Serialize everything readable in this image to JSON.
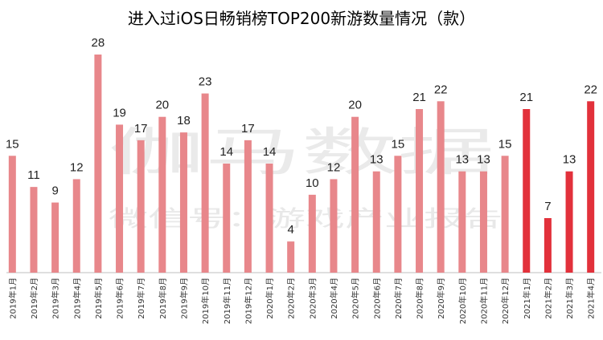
{
  "watermark": {
    "main": "伽马数据",
    "sub": "微信号：游戏产业报告"
  },
  "chart_data": {
    "type": "bar",
    "title": "进入过iOS日畅销榜TOP200新游数量情况（款）",
    "xlabel": "",
    "ylabel": "",
    "ylim": [
      0,
      30
    ],
    "grid": false,
    "categories": [
      "2019年1月",
      "2019年2月",
      "2019年3月",
      "2019年4月",
      "2019年5月",
      "2019年6月",
      "2019年7月",
      "2019年8月",
      "2019年9月",
      "2019年10月",
      "2019年11月",
      "2019年12月",
      "2020年1月",
      "2020年2月",
      "2020年3月",
      "2020年4月",
      "2020年5月",
      "2020年6月",
      "2020年7月",
      "2020年8月",
      "2020年9月",
      "2020年10月",
      "2020年11月",
      "2020年12月",
      "2021年1月",
      "2021年2月",
      "2021年3月",
      "2021年4月"
    ],
    "values": [
      15,
      11,
      9,
      12,
      28,
      19,
      17,
      20,
      18,
      23,
      14,
      17,
      14,
      4,
      10,
      12,
      20,
      13,
      15,
      21,
      22,
      13,
      13,
      15,
      21,
      7,
      13,
      22
    ],
    "colors": {
      "base": "#e8878b",
      "highlight": "#e2313b"
    },
    "highlight_from_index": 24
  }
}
